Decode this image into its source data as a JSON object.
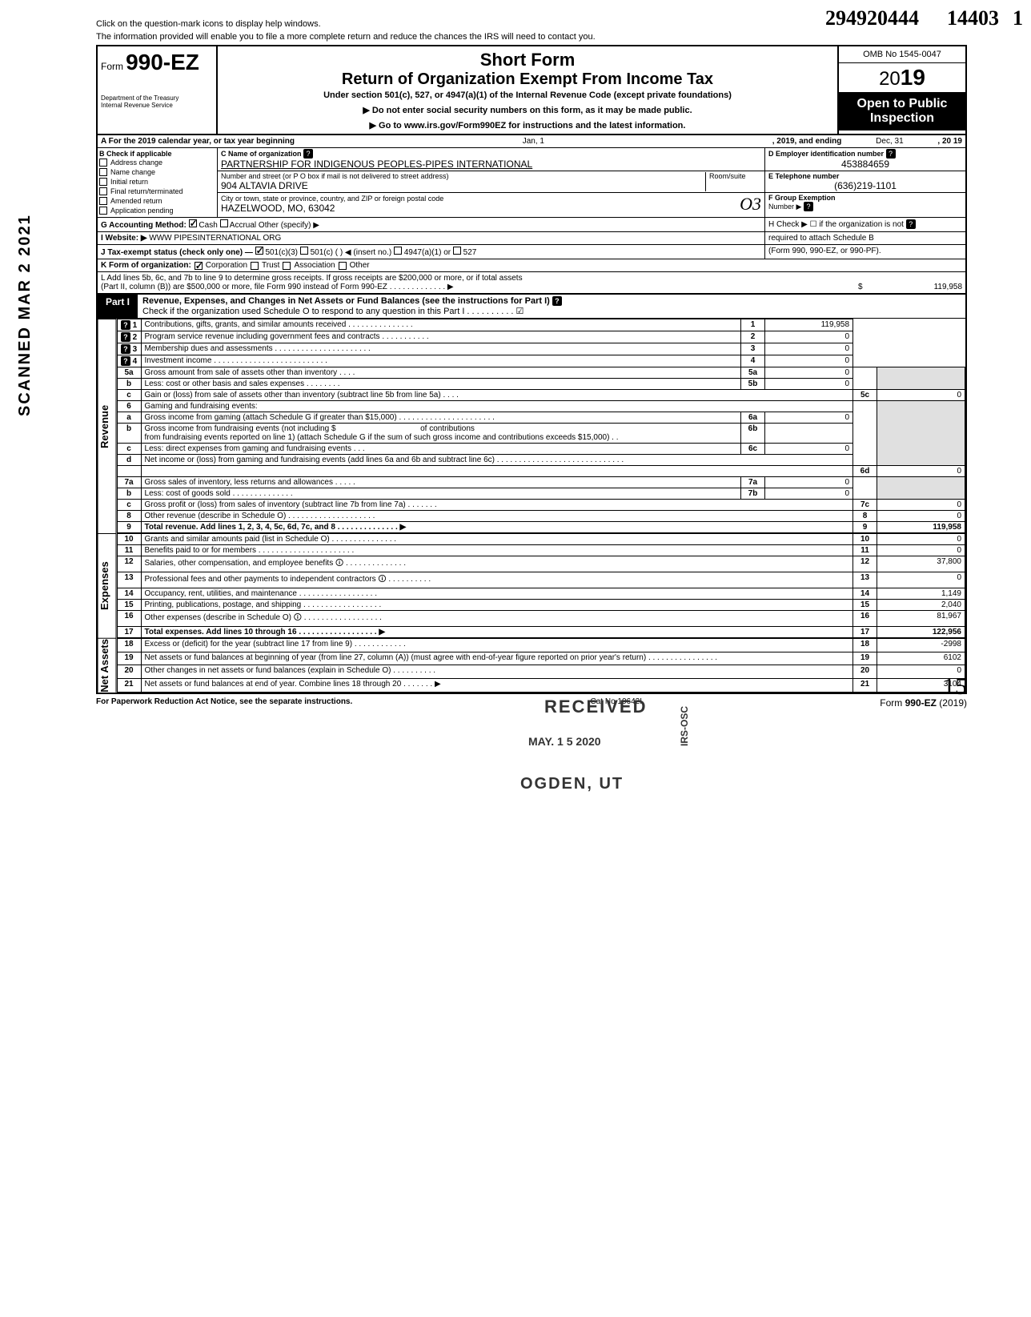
{
  "handwritten": {
    "topNum": "294920444",
    "topNum2": "14403",
    "one": "1",
    "sig": "15",
    "o3": "O3"
  },
  "sideStamp": "SCANNED MAR 2 2021",
  "help": {
    "line1": "Click on the question-mark icons to display help windows.",
    "line2": "The information provided will enable you to file a more complete return and reduce the chances the IRS will need to contact you."
  },
  "header": {
    "formWord": "Form",
    "formNum": "990-EZ",
    "dept": "Department of the Treasury\nInternal Revenue Service",
    "title1": "Short Form",
    "title2": "Return of Organization Exempt From Income Tax",
    "sub": "Under section 501(c), 527, or 4947(a)(1) of the Internal Revenue Code (except private foundations)",
    "instr1": "▶ Do not enter social security numbers on this form, as it may be made public.",
    "instr2": "▶ Go to www.irs.gov/Form990EZ for instructions and the latest information.",
    "omb": "OMB No 1545-0047",
    "yearPrefix": "20",
    "yearBold": "19",
    "open1": "Open to Public",
    "open2": "Inspection"
  },
  "rowA": {
    "label": "A For the 2019 calendar year, or tax year beginning",
    "begin": "Jan, 1",
    "mid": ", 2019, and ending",
    "end": "Dec, 31",
    "endYear": ", 20   19"
  },
  "boxB": {
    "label": "B  Check if applicable",
    "items": [
      "Address change",
      "Name change",
      "Initial return",
      "Final return/terminated",
      "Amended return",
      "Application pending"
    ]
  },
  "boxC": {
    "labelName": "C  Name of organization",
    "name": "PARTNERSHIP FOR INDIGENOUS PEOPLES-PIPES INTERNATIONAL",
    "labelAddr": "Number and street (or P O  box if mail is not delivered to street address)",
    "roomLabel": "Room/suite",
    "addr": "904 ALTAVIA DRIVE",
    "labelCity": "City or town, state or province, country, and ZIP or foreign postal code",
    "city": "HAZELWOOD, MO, 63042"
  },
  "boxD": {
    "label": "D Employer identification number",
    "val": "453884659"
  },
  "boxE": {
    "label": "E  Telephone number",
    "val": "(636)219-1101"
  },
  "boxF": {
    "label": "F  Group Exemption",
    "label2": "Number ▶"
  },
  "lineG": {
    "label": "G  Accounting Method:",
    "cash": "Cash",
    "accrual": "Accrual",
    "other": "Other (specify) ▶"
  },
  "lineH": {
    "label": "H  Check ▶ ☐ if the organization is not",
    "label2": "required to attach Schedule B",
    "label3": "(Form 990, 990-EZ, or 990-PF)."
  },
  "lineI": {
    "label": "I   Website: ▶ ",
    "val": "WWW PIPESINTERNATIONAL ORG"
  },
  "lineJ": {
    "label": "J  Tax-exempt status (check only one) —",
    "a": "501(c)(3)",
    "b": "501(c) (",
    "c": ") ◀ (insert no.)",
    "d": "4947(a)(1) or",
    "e": "527"
  },
  "lineK": {
    "label": "K  Form of organization:",
    "a": "Corporation",
    "b": "Trust",
    "c": "Association",
    "d": "Other"
  },
  "lineL": {
    "text": "L  Add lines 5b, 6c, and 7b to line 9 to determine gross receipts. If gross receipts are $200,000 or more, or if total assets",
    "text2": "(Part II, column (B)) are $500,000 or more, file Form 990 instead of Form 990-EZ .   .   .   .   .   .   .   .   .   .   .   .   .   ▶",
    "val": "119,958"
  },
  "part1": {
    "label": "Part I",
    "title": "Revenue, Expenses, and Changes in Net Assets or Fund Balances (see the instructions for Part I)",
    "check": "Check if the organization used Schedule O to respond to any question in this Part I  .   .   .   .   .   .   .   .   .   .   ☑"
  },
  "sideLabels": {
    "revenue": "Revenue",
    "expenses": "Expenses",
    "netassets": "Net Assets"
  },
  "rows": [
    {
      "n": "1",
      "label": "Contributions, gifts, grants, and similar amounts received .   .   .   .   .   .   .   .   .   .   .   .   .   .   .",
      "rn": "1",
      "val": "119,958",
      "help": true
    },
    {
      "n": "2",
      "label": "Program service revenue including government fees and contracts    .   .   .   .   .   .   .   .   .   .   .",
      "rn": "2",
      "val": "0",
      "help": true
    },
    {
      "n": "3",
      "label": "Membership dues and assessments .   .   .   .   .   .   .   .   .   .   .   .   .   .   .   .   .   .   .   .   .   .",
      "rn": "3",
      "val": "0",
      "help": true
    },
    {
      "n": "4",
      "label": "Investment income     .   .   .   .   .   .   .   .   .   .   .   .   .   .   .   .   .   .   .   .   .   .   .   .   .   .",
      "rn": "4",
      "val": "0",
      "help": true
    }
  ],
  "rows5": {
    "a": {
      "n": "5a",
      "label": "Gross amount from sale of assets other than inventory    .   .   .   .",
      "mn": "5a",
      "mv": "0"
    },
    "b": {
      "n": "b",
      "label": "Less: cost or other basis and sales expenses .   .   .   .   .   .   .   .",
      "mn": "5b",
      "mv": "0"
    },
    "c": {
      "n": "c",
      "label": "Gain or (loss) from sale of assets other than inventory (subtract line 5b from line 5a)  .   .   .   .",
      "rn": "5c",
      "val": "0"
    }
  },
  "rows6": {
    "head": {
      "n": "6",
      "label": "Gaming and fundraising events:"
    },
    "a": {
      "n": "a",
      "label": "Gross income from gaming (attach Schedule G if greater than $15,000) .   .   .   .   .   .   .   .   .   .   .   .   .   .   .   .   .   .   .   .   .   .",
      "mn": "6a",
      "mv": "0"
    },
    "b": {
      "n": "b",
      "label": "Gross income from fundraising events (not including  $",
      "label2": "of contributions",
      "label3": "from fundraising events reported on line 1) (attach Schedule G if the sum of such gross income and contributions exceeds $15,000) .   .",
      "mn": "6b",
      "mv": ""
    },
    "c": {
      "n": "c",
      "label": "Less: direct expenses from gaming and fundraising events    .   .   .",
      "mn": "6c",
      "mv": "0"
    },
    "d": {
      "n": "d",
      "label": "Net income or (loss) from gaming and fundraising events (add lines 6a and 6b and subtract line 6c)    .   .   .   .   .   .   .   .   .   .   .   .   .   .   .   .   .   .   .   .   .   .   .   .   .   .   .   .   .",
      "rn": "6d",
      "val": "0"
    }
  },
  "rows7": {
    "a": {
      "n": "7a",
      "label": "Gross sales of inventory, less returns and allowances   .   .   .   .   .",
      "mn": "7a",
      "mv": "0"
    },
    "b": {
      "n": "b",
      "label": "Less: cost of goods sold     .   .   .   .   .   .   .   .   .   .   .   .   .   .",
      "mn": "7b",
      "mv": "0"
    },
    "c": {
      "n": "c",
      "label": "Gross profit or (loss) from sales of inventory (subtract line 7b from line 7a)   .   .   .   .   .   .   .",
      "rn": "7c",
      "val": "0"
    }
  },
  "rows8_21": [
    {
      "n": "8",
      "label": "Other revenue (describe in Schedule O) .   .   .   .   .   .   .   .   .   .   .   .   .   .   .   .   .   .   .   .",
      "rn": "8",
      "val": "0"
    },
    {
      "n": "9",
      "label": "Total revenue. Add lines 1, 2, 3, 4, 5c, 6d, 7c, and 8   .   .   .   .   .   .   .   .   .   .   .   .   .   .   ▶",
      "rn": "9",
      "val": "119,958",
      "bold": true
    },
    {
      "n": "10",
      "label": "Grants and similar amounts paid (list in Schedule O)  .   .   .   .   .   .   .   .   .   .   .   .   .   .   .",
      "rn": "10",
      "val": "0"
    },
    {
      "n": "11",
      "label": "Benefits paid to or for members   .   .   .   .   .   .   .   .   .   .   .   .   .   .   .   .   .   .   .   .   .   .",
      "rn": "11",
      "val": "0"
    },
    {
      "n": "12",
      "label": "Salaries, other compensation, and employee benefits 🛈  .   .   .   .   .   .   .   .   .   .   .   .   .   .",
      "rn": "12",
      "val": "37,800"
    },
    {
      "n": "13",
      "label": "Professional fees and other payments to independent contractors 🛈  .   .   .   .   .   .   .   .   .   .",
      "rn": "13",
      "val": "0"
    },
    {
      "n": "14",
      "label": "Occupancy, rent, utilities, and maintenance   .   .   .   .   .   .   .   .   .   .   .   .   .   .   .   .   .   .",
      "rn": "14",
      "val": "1,149"
    },
    {
      "n": "15",
      "label": "Printing, publications, postage, and shipping .   .   .   .   .   .   .   .   .   .   .   .   .   .   .   .   .   .",
      "rn": "15",
      "val": "2,040"
    },
    {
      "n": "16",
      "label": "Other expenses (describe in Schedule O) 🛈 .   .   .   .   .   .   .   .   .   .   .   .   .   .   .   .   .   .",
      "rn": "16",
      "val": "81,967"
    },
    {
      "n": "17",
      "label": "Total expenses. Add lines 10 through 16 .   .   .   .   .   .   .   .   .   .   .   .   .   .   .   .   .   .   ▶",
      "rn": "17",
      "val": "122,956",
      "bold": true
    },
    {
      "n": "18",
      "label": "Excess or (deficit) for the year (subtract line 17 from line 9)    .   .   .   .   .   .   .   .   .   .   .   .",
      "rn": "18",
      "val": "-2998"
    },
    {
      "n": "19",
      "label": "Net assets or fund balances at beginning of year (from line 27, column (A)) (must agree with end-of-year figure reported on prior year's return)    .   .   .   .   .   .   .   .   .   .   .   .   .   .   .   .",
      "rn": "19",
      "val": "6102"
    },
    {
      "n": "20",
      "label": "Other changes in net assets or fund balances (explain in Schedule O) .   .   .   .   .   .   .   .   .   .",
      "rn": "20",
      "val": "0"
    },
    {
      "n": "21",
      "label": "Net assets or fund balances at end of year. Combine lines 18 through 20    .   .   .   .   .   .   .   ▶",
      "rn": "21",
      "val": "3104"
    }
  ],
  "footer": {
    "left": "For Paperwork Reduction Act Notice, see the separate instructions.",
    "mid": "Cat  No  10642I",
    "right": "Form 990-EZ (2019)"
  },
  "stamps": {
    "received": "RECEIVED",
    "date": "MAY. 1 5 2020",
    "ogden": "OGDEN, UT",
    "irs": "IRS-OSC"
  }
}
